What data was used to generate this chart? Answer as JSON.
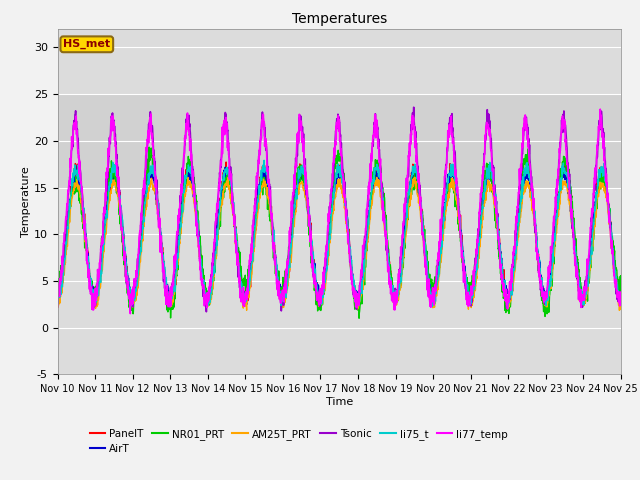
{
  "title": "Temperatures",
  "xlabel": "Time",
  "ylabel": "Temperature",
  "ylim": [
    -5,
    32
  ],
  "xlim": [
    0,
    15
  ],
  "annotation_text": "HS_met",
  "annotation_color": "#8B0000",
  "annotation_bg": "#FFD700",
  "annotation_border": "#8B6914",
  "fig_bg": "#F2F2F2",
  "plot_bg": "#DCDCDC",
  "plot_bg2": "#C8C8C8",
  "series": {
    "PanelT": {
      "color": "#FF0000",
      "lw": 1.0
    },
    "AirT": {
      "color": "#0000CC",
      "lw": 1.0
    },
    "NR01_PRT": {
      "color": "#00CC00",
      "lw": 1.0
    },
    "AM25T_PRT": {
      "color": "#FFA500",
      "lw": 1.0
    },
    "Tsonic": {
      "color": "#9900CC",
      "lw": 1.2
    },
    "li75_t": {
      "color": "#00CCCC",
      "lw": 1.0
    },
    "li77_temp": {
      "color": "#FF00FF",
      "lw": 1.2
    }
  },
  "xtick_labels": [
    "Nov 10",
    "Nov 11",
    "Nov 12",
    "Nov 13",
    "Nov 14",
    "Nov 15",
    "Nov 16",
    "Nov 17",
    "Nov 18",
    "Nov 19",
    "Nov 20",
    "Nov 21",
    "Nov 22",
    "Nov 23",
    "Nov 24",
    "Nov 25"
  ],
  "ytick_labels": [
    -5,
    0,
    5,
    10,
    15,
    20,
    25,
    30
  ],
  "hgrid_color": "#FFFFFF",
  "num_points": 2000
}
